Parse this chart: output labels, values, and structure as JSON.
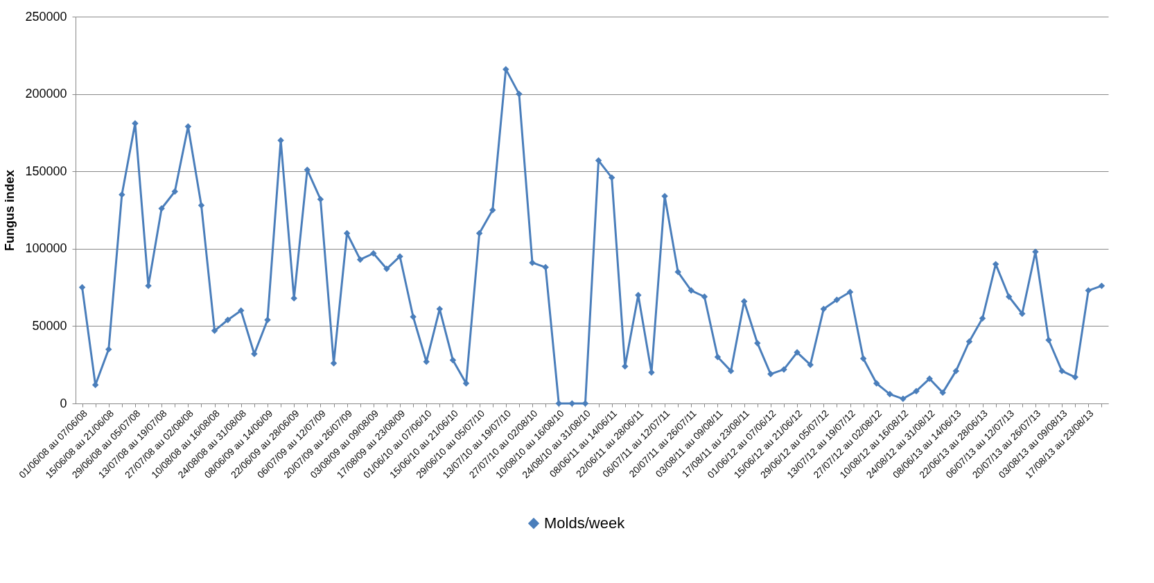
{
  "chart_data": {
    "type": "line",
    "ylabel": "Fungus index",
    "categories": [
      "01/06/08 au 07/06/08",
      null,
      "15/06/08 au 21/06/08",
      null,
      "29/06/08 au 05/07/08",
      null,
      "13/07/08 au 19/07/08",
      null,
      "27/07/08 au 02/08/08",
      null,
      "10/08/08 au 16/08/08",
      null,
      "24/08/08 au 31/08/08",
      null,
      "08/06/09 au 14/06/09",
      null,
      "22/06/09 au 28/06/09",
      null,
      "06/07/09 au 12/07/09",
      null,
      "20/07/09 au 26/07/09",
      null,
      "03/08/09 au 09/08/09",
      null,
      "17/08/09 au 23/08/09",
      null,
      "01/06/10 au 07/06/10",
      null,
      "15/06/10 au 21/06/10",
      null,
      "29/06/10 au 05/07/10",
      null,
      "13/07/10 au 19/07/10",
      null,
      "27/07/10 au 02/08/10",
      null,
      "10/08/10 au 16/08/10",
      null,
      "24/08/10 au 31/08/10",
      null,
      "08/06/11 au 14/06/11",
      null,
      "22/06/11 au 28/06/11",
      null,
      "06/07/11 au 12/07/11",
      null,
      "20/07/11 au 26/07/11",
      null,
      "03/08/11 au 09/08/11",
      null,
      "17/08/11 au 23/08/11",
      null,
      "01/06/12 au 07/06/12",
      null,
      "15/06/12 au 21/06/12",
      null,
      "29/06/12 au 05/07/12",
      null,
      "13/07/12 au 19/07/12",
      null,
      "27/07/12 au 02/08/12",
      null,
      "10/08/12 au 16/08/12",
      null,
      "24/08/12 au 31/08/12",
      null,
      "08/06/13 au 14/06/13",
      null,
      "22/06/13 au 28/06/13",
      null,
      "06/07/13 au 12/07/13",
      null,
      "20/07/13 au 26/07/13",
      null,
      "03/08/13 au 09/08/13",
      null,
      "17/08/13 au 23/08/13",
      null
    ],
    "series": [
      {
        "name": "Molds/week",
        "color": "#4a7ebb",
        "values": [
          75000,
          12000,
          35000,
          135000,
          181000,
          76000,
          126000,
          137000,
          179000,
          128000,
          47000,
          54000,
          60000,
          32000,
          54000,
          170000,
          68000,
          151000,
          132000,
          26000,
          110000,
          93000,
          97000,
          87000,
          95000,
          56000,
          27000,
          61000,
          28000,
          13000,
          110000,
          125000,
          216000,
          200000,
          91000,
          88000,
          0,
          0,
          0,
          157000,
          146000,
          24000,
          70000,
          20000,
          134000,
          85000,
          73000,
          69000,
          30000,
          21000,
          66000,
          39000,
          19000,
          22000,
          33000,
          25000,
          61000,
          67000,
          72000,
          29000,
          13000,
          6000,
          3000,
          8000,
          16000,
          7000,
          21000,
          40000,
          55000,
          90000,
          69000,
          58000,
          98000,
          41000,
          21000,
          17000,
          73000,
          76000
        ]
      }
    ],
    "ylim": [
      0,
      250000
    ],
    "yticks": [
      0,
      50000,
      100000,
      150000,
      200000,
      250000
    ],
    "grid": "y",
    "legend": "bottom",
    "marker": "diamond",
    "line_style": "solid"
  }
}
